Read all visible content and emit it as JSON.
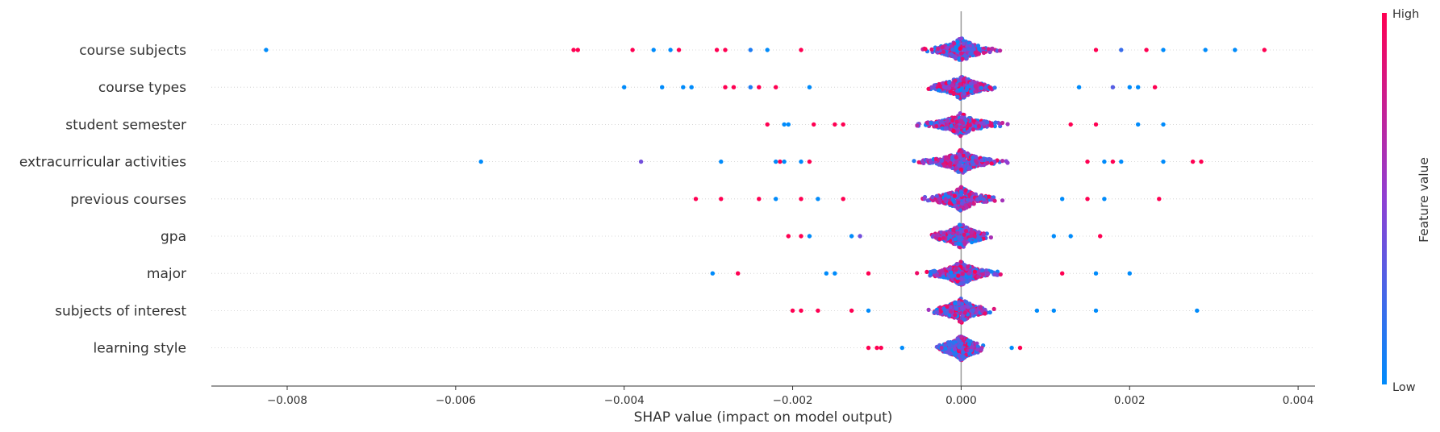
{
  "chart_data": {
    "type": "scatter",
    "subtype": "shap-beeswarm",
    "xlabel": "SHAP value (impact on model output)",
    "xlim": [
      -0.0089,
      0.0042
    ],
    "xticks": [
      -0.008,
      -0.006,
      -0.004,
      -0.002,
      0.0,
      0.002,
      0.004
    ],
    "xtick_labels": [
      "−0.008",
      "−0.006",
      "−0.004",
      "−0.002",
      "0.000",
      "0.002",
      "0.004"
    ],
    "features": [
      {
        "name": "course subjects",
        "density_spread": 0.0006,
        "outliers": [
          {
            "x": -0.00825,
            "v": 0.0
          },
          {
            "x": -0.0046,
            "v": 1.0
          },
          {
            "x": -0.00455,
            "v": 1.0
          },
          {
            "x": -0.0039,
            "v": 1.0
          },
          {
            "x": -0.00365,
            "v": 0.0
          },
          {
            "x": -0.00345,
            "v": 0.0
          },
          {
            "x": -0.00335,
            "v": 1.0
          },
          {
            "x": -0.0029,
            "v": 1.0
          },
          {
            "x": -0.0028,
            "v": 1.0
          },
          {
            "x": -0.0025,
            "v": 0.1
          },
          {
            "x": -0.0023,
            "v": 0.0
          },
          {
            "x": -0.0019,
            "v": 1.0
          },
          {
            "x": 0.0016,
            "v": 1.0
          },
          {
            "x": 0.0019,
            "v": 0.2
          },
          {
            "x": 0.0022,
            "v": 1.0
          },
          {
            "x": 0.0024,
            "v": 0.0
          },
          {
            "x": 0.0029,
            "v": 0.0
          },
          {
            "x": 0.00325,
            "v": 0.0
          },
          {
            "x": 0.0036,
            "v": 1.0
          }
        ]
      },
      {
        "name": "course types",
        "density_spread": 0.0006,
        "outliers": [
          {
            "x": -0.004,
            "v": 0.0
          },
          {
            "x": -0.00355,
            "v": 0.0
          },
          {
            "x": -0.0033,
            "v": 0.0
          },
          {
            "x": -0.0032,
            "v": 0.0
          },
          {
            "x": -0.0028,
            "v": 1.0
          },
          {
            "x": -0.0027,
            "v": 1.0
          },
          {
            "x": -0.0025,
            "v": 0.1
          },
          {
            "x": -0.0024,
            "v": 1.0
          },
          {
            "x": -0.0022,
            "v": 1.0
          },
          {
            "x": -0.0018,
            "v": 0.0
          },
          {
            "x": 0.0014,
            "v": 0.0
          },
          {
            "x": 0.0018,
            "v": 0.3
          },
          {
            "x": 0.002,
            "v": 0.0
          },
          {
            "x": 0.0021,
            "v": 0.0
          },
          {
            "x": 0.0023,
            "v": 1.0
          }
        ]
      },
      {
        "name": "student semester",
        "density_spread": 0.0007,
        "outliers": [
          {
            "x": -0.0023,
            "v": 1.0
          },
          {
            "x": -0.0021,
            "v": 0.0
          },
          {
            "x": -0.00205,
            "v": 0.0
          },
          {
            "x": -0.00175,
            "v": 1.0
          },
          {
            "x": -0.0015,
            "v": 1.0
          },
          {
            "x": -0.0014,
            "v": 1.0
          },
          {
            "x": 0.0013,
            "v": 1.0
          },
          {
            "x": 0.0016,
            "v": 1.0
          },
          {
            "x": 0.0021,
            "v": 0.0
          },
          {
            "x": 0.0024,
            "v": 0.0
          }
        ]
      },
      {
        "name": "extracurricular activities",
        "density_spread": 0.0007,
        "outliers": [
          {
            "x": -0.0057,
            "v": 0.0
          },
          {
            "x": -0.0038,
            "v": 0.4
          },
          {
            "x": -0.00285,
            "v": 0.0
          },
          {
            "x": -0.0022,
            "v": 0.0
          },
          {
            "x": -0.00215,
            "v": 1.0
          },
          {
            "x": -0.0021,
            "v": 0.0
          },
          {
            "x": -0.0019,
            "v": 0.0
          },
          {
            "x": -0.0018,
            "v": 1.0
          },
          {
            "x": 0.0015,
            "v": 1.0
          },
          {
            "x": 0.0017,
            "v": 0.0
          },
          {
            "x": 0.0018,
            "v": 1.0
          },
          {
            "x": 0.0019,
            "v": 0.0
          },
          {
            "x": 0.0024,
            "v": 0.0
          },
          {
            "x": 0.00275,
            "v": 1.0
          },
          {
            "x": 0.00285,
            "v": 1.0
          }
        ]
      },
      {
        "name": "previous courses",
        "density_spread": 0.0006,
        "outliers": [
          {
            "x": -0.00315,
            "v": 1.0
          },
          {
            "x": -0.00285,
            "v": 1.0
          },
          {
            "x": -0.0024,
            "v": 1.0
          },
          {
            "x": -0.0022,
            "v": 0.0
          },
          {
            "x": -0.0019,
            "v": 1.0
          },
          {
            "x": -0.0017,
            "v": 0.0
          },
          {
            "x": -0.0014,
            "v": 1.0
          },
          {
            "x": 0.0012,
            "v": 0.0
          },
          {
            "x": 0.0015,
            "v": 1.0
          },
          {
            "x": 0.0017,
            "v": 0.0
          },
          {
            "x": 0.00235,
            "v": 1.0
          }
        ]
      },
      {
        "name": "gpa",
        "density_spread": 0.0005,
        "outliers": [
          {
            "x": -0.00205,
            "v": 1.0
          },
          {
            "x": -0.0019,
            "v": 1.0
          },
          {
            "x": -0.0018,
            "v": 0.0
          },
          {
            "x": -0.0013,
            "v": 0.0
          },
          {
            "x": -0.0012,
            "v": 0.4
          },
          {
            "x": 0.0011,
            "v": 0.0
          },
          {
            "x": 0.0013,
            "v": 0.0
          },
          {
            "x": 0.00165,
            "v": 1.0
          }
        ]
      },
      {
        "name": "major",
        "density_spread": 0.0006,
        "outliers": [
          {
            "x": -0.00295,
            "v": 0.0
          },
          {
            "x": -0.00265,
            "v": 1.0
          },
          {
            "x": -0.0016,
            "v": 0.0
          },
          {
            "x": -0.0015,
            "v": 0.0
          },
          {
            "x": -0.0011,
            "v": 1.0
          },
          {
            "x": 0.0012,
            "v": 1.0
          },
          {
            "x": 0.0016,
            "v": 0.0
          },
          {
            "x": 0.002,
            "v": 0.0
          }
        ]
      },
      {
        "name": "subjects of interest",
        "density_spread": 0.0005,
        "outliers": [
          {
            "x": -0.002,
            "v": 1.0
          },
          {
            "x": -0.0019,
            "v": 1.0
          },
          {
            "x": -0.0017,
            "v": 1.0
          },
          {
            "x": -0.0013,
            "v": 1.0
          },
          {
            "x": -0.0011,
            "v": 0.0
          },
          {
            "x": 0.0009,
            "v": 0.0
          },
          {
            "x": 0.0011,
            "v": 0.0
          },
          {
            "x": 0.0016,
            "v": 0.0
          },
          {
            "x": 0.0028,
            "v": 0.0
          }
        ]
      },
      {
        "name": "learning style",
        "density_spread": 0.0004,
        "outliers": [
          {
            "x": -0.0011,
            "v": 1.0
          },
          {
            "x": -0.001,
            "v": 1.0
          },
          {
            "x": -0.00095,
            "v": 1.0
          },
          {
            "x": -0.0007,
            "v": 0.0
          },
          {
            "x": 0.0006,
            "v": 0.0
          },
          {
            "x": 0.0007,
            "v": 1.0
          }
        ]
      }
    ],
    "colorbar": {
      "title": "Feature value",
      "high_label": "High",
      "low_label": "Low",
      "low_color": "#008bfb",
      "high_color": "#ff0052"
    },
    "zero_line": true,
    "row_gridlines": "dotted"
  }
}
